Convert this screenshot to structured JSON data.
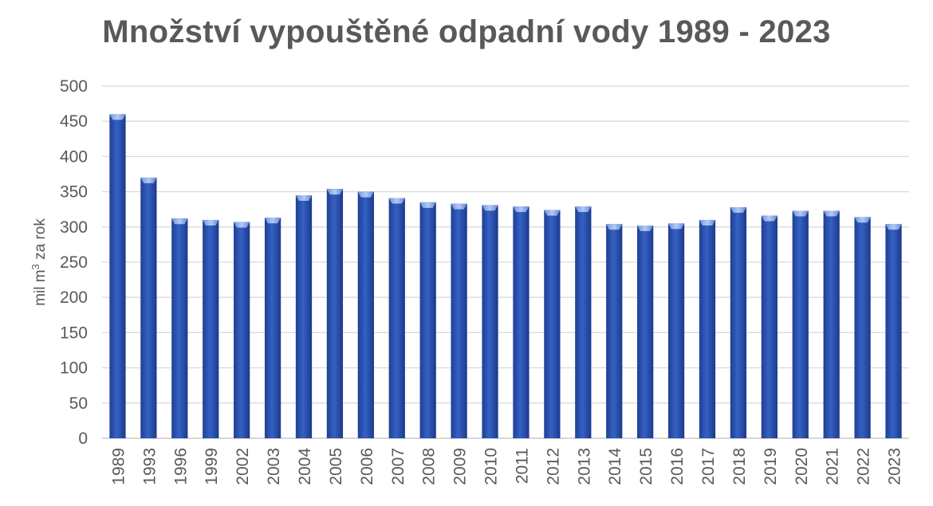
{
  "chart_data": {
    "type": "bar",
    "title": "Množství vypouštěné odpadní vody 1989 - 2023",
    "ylabel_main": "mil m",
    "ylabel_sup": "3",
    "ylabel_tail": " za rok",
    "xlabel": "",
    "ylim": [
      0,
      500
    ],
    "yticks": [
      0,
      50,
      100,
      150,
      200,
      250,
      300,
      350,
      400,
      450,
      500
    ],
    "grid": true,
    "legend": "none",
    "categories": [
      "1989",
      "1993",
      "1996",
      "1999",
      "2002",
      "2003",
      "2004",
      "2005",
      "2006",
      "2007",
      "2008",
      "2009",
      "2010",
      "2011",
      "2012",
      "2013",
      "2014",
      "2015",
      "2016",
      "2017",
      "2018",
      "2019",
      "2020",
      "2021",
      "2022",
      "2023"
    ],
    "values": [
      460,
      370,
      312,
      310,
      307,
      313,
      345,
      354,
      350,
      341,
      335,
      333,
      331,
      329,
      324,
      329,
      304,
      302,
      305,
      310,
      328,
      316,
      323,
      323,
      314,
      304
    ],
    "colors": {
      "bar": "#2f55b4",
      "bar_top": "#8fb0ee",
      "grid": "#d9d9d9",
      "axis": "#bfbfbf",
      "text": "#595959"
    }
  }
}
